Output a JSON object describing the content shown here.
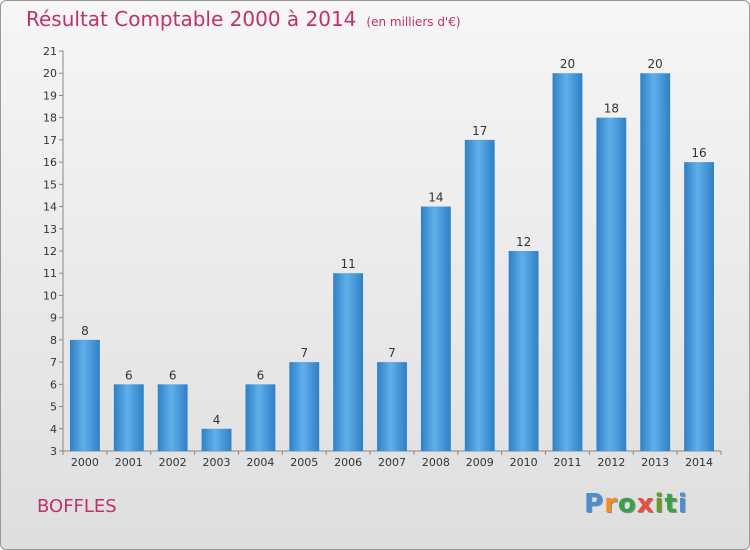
{
  "title": "Résultat Comptable 2000 à 2014",
  "subtitle": "(en milliers d'€)",
  "commune": "BOFFLES",
  "logo": {
    "letters": [
      "P",
      "r",
      "o",
      "x",
      "i",
      "t",
      "i"
    ],
    "colors": [
      "#4a8fd0",
      "#f28c28",
      "#3aa04a",
      "#e94e3c",
      "#6a9a2a",
      "#3aa04a",
      "#4a8fd0"
    ]
  },
  "chart_data": {
    "type": "bar",
    "categories": [
      "2000",
      "2001",
      "2002",
      "2003",
      "2004",
      "2005",
      "2006",
      "2007",
      "2008",
      "2009",
      "2010",
      "2011",
      "2012",
      "2013",
      "2014"
    ],
    "values": [
      8,
      6,
      6,
      4,
      6,
      7,
      11,
      7,
      14,
      17,
      12,
      20,
      18,
      20,
      16
    ],
    "ylim": [
      3,
      21
    ],
    "yticks": [
      "3",
      "4",
      "5",
      "6",
      "7",
      "8",
      "9",
      "10",
      "11",
      "12",
      "13",
      "14",
      "15",
      "16",
      "17",
      "18",
      "19",
      "20",
      "21"
    ],
    "bar_color": "#3f93d8",
    "grid": false
  }
}
